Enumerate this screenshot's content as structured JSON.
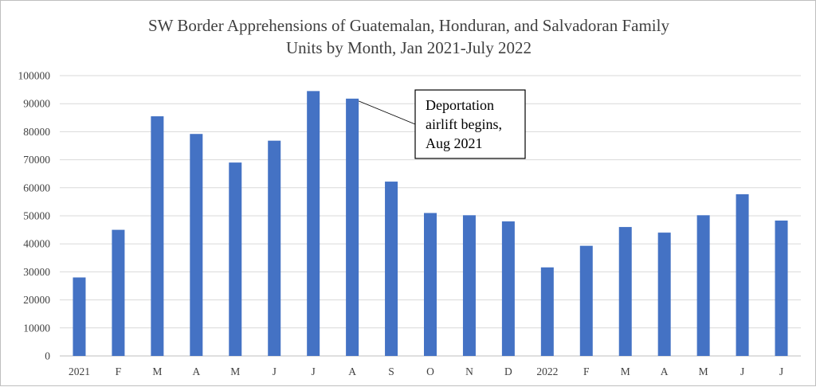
{
  "chart_data": {
    "type": "bar",
    "title": [
      "SW Border Apprehensions  of Guatemalan,  Honduran,  and Salvadoran  Family",
      "Units by Month, Jan 2021-July  2022"
    ],
    "xlabel": "",
    "ylabel": "",
    "categories": [
      "2021",
      "F",
      "M",
      "A",
      "M",
      "J",
      "J",
      "A",
      "S",
      "O",
      "N",
      "D",
      "2022",
      "F",
      "M",
      "A",
      "M",
      "J",
      "J"
    ],
    "values": [
      28000,
      45000,
      85500,
      79200,
      69000,
      76800,
      94500,
      91800,
      62200,
      51000,
      50200,
      48000,
      31600,
      39300,
      46000,
      44000,
      50200,
      57700,
      48300
    ],
    "ylim": [
      0,
      100000
    ],
    "yticks": [
      "0",
      "10000",
      "20000",
      "30000",
      "40000",
      "50000",
      "60000",
      "70000",
      "80000",
      "90000",
      "100000"
    ],
    "grid": true,
    "legend": "none",
    "annotation": {
      "text": [
        "Deportation",
        "airlift begins,",
        "Aug 2021"
      ],
      "target_index": 7
    },
    "colors": {
      "bar": "#4472c4",
      "grid": "#d9d9d9",
      "axis_text": "#404040",
      "title": "#404040"
    }
  }
}
